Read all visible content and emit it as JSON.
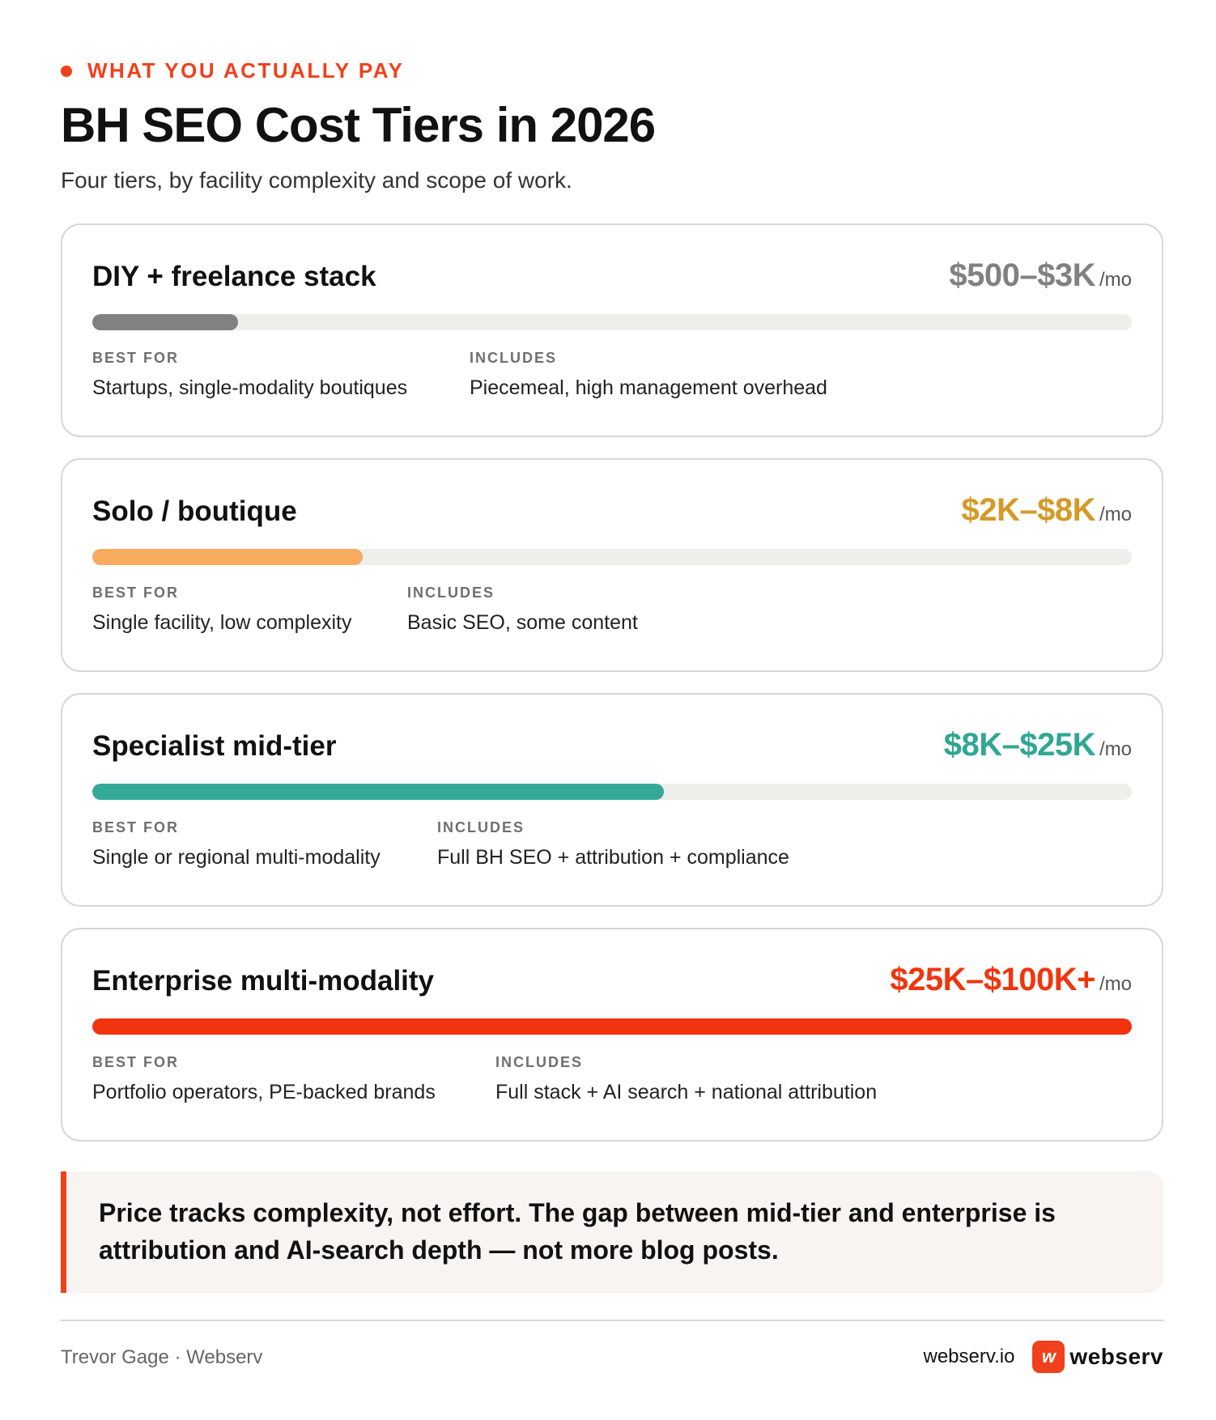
{
  "header": {
    "eyebrow": "WHAT YOU ACTUALLY PAY",
    "title": "BH SEO Cost Tiers in 2026",
    "subtitle": "Four tiers, by facility complexity and scope of work."
  },
  "tiers": [
    {
      "name": "DIY + freelance stack",
      "price": "$500–$3K",
      "unit": "/mo",
      "color": "#818180",
      "bar_fraction": 0.14,
      "best_for_label": "BEST FOR",
      "best_for": "Startups, single-modality boutiques",
      "includes_label": "INCLUDES",
      "includes": "Piecemeal, high management overhead"
    },
    {
      "name": "Solo / boutique",
      "price": "$2K–$8K",
      "unit": "/mo",
      "color": "#d49a28",
      "bar_color": "#f7ab5c",
      "bar_fraction": 0.26,
      "best_for_label": "BEST FOR",
      "best_for": "Single facility, low complexity",
      "includes_label": "INCLUDES",
      "includes": "Basic SEO, some content"
    },
    {
      "name": "Specialist mid-tier",
      "price": "$8K–$25K",
      "unit": "/mo",
      "color": "#2fa792",
      "bar_color": "#34aa96",
      "bar_fraction": 0.55,
      "best_for_label": "BEST FOR",
      "best_for": "Single or regional multi-modality",
      "includes_label": "INCLUDES",
      "includes": "Full BH SEO + attribution + compliance"
    },
    {
      "name": "Enterprise multi-modality",
      "price": "$25K–$100K+",
      "unit": "/mo",
      "color": "#f0350f",
      "bar_color": "#f2330f",
      "bar_fraction": 1.0,
      "best_for_label": "BEST FOR",
      "best_for": "Portfolio operators, PE-backed brands",
      "includes_label": "INCLUDES",
      "includes": "Full stack + AI search + national attribution"
    }
  ],
  "callout": {
    "text": "Price tracks complexity, not effort. The gap between mid-tier and enterprise is attribution and AI-search depth — not more blog posts."
  },
  "footer": {
    "author": "Trevor Gage · Webserv",
    "url": "webserv.io",
    "logo_mark": "w",
    "logo_word": "webserv"
  },
  "colors": {
    "accent": "#f0401c"
  }
}
